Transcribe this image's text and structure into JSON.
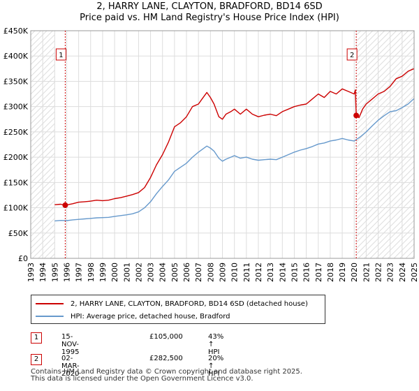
{
  "title_line1": "2, HARRY LANE, CLAYTON, BRADFORD, BD14 6SD",
  "title_line2": "Price paid vs. HM Land Registry's House Price Index (HPI)",
  "chart_data": {
    "type": "line",
    "title": "2, HARRY LANE, CLAYTON, BRADFORD, BD14 6SD — Price paid vs. HM Land Registry's House Price Index (HPI)",
    "xlim": [
      1993,
      2025
    ],
    "ylim": [
      0,
      450000
    ],
    "x_ticks": [
      1993,
      1994,
      1995,
      1996,
      1997,
      1998,
      1999,
      2000,
      2001,
      2002,
      2003,
      2004,
      2005,
      2006,
      2007,
      2008,
      2009,
      2010,
      2011,
      2012,
      2013,
      2014,
      2015,
      2016,
      2017,
      2018,
      2019,
      2020,
      2021,
      2022,
      2023,
      2024,
      2025
    ],
    "y_ticks": [
      0,
      50000,
      100000,
      150000,
      200000,
      250000,
      300000,
      350000,
      400000,
      450000
    ],
    "y_tick_labels": [
      "£0",
      "£50K",
      "£100K",
      "£150K",
      "£200K",
      "£250K",
      "£300K",
      "£350K",
      "£400K",
      "£450K"
    ],
    "grid": true,
    "hatched_ranges": [
      [
        1993,
        1995.0
      ],
      [
        2020.17,
        2025
      ]
    ],
    "series": [
      {
        "name": "2, HARRY LANE, CLAYTON, BRADFORD, BD14 6SD (detached house)",
        "color": "#cc0000",
        "x": [
          1995.0,
          1995.5,
          1995.88,
          1996.5,
          1997,
          1997.5,
          1998,
          1998.5,
          1999,
          1999.5,
          2000,
          2000.5,
          2001,
          2001.5,
          2002,
          2002.5,
          2003,
          2003.5,
          2004,
          2004.5,
          2005,
          2005.5,
          2006,
          2006.5,
          2007,
          2007.3,
          2007.7,
          2008,
          2008.3,
          2008.7,
          2009,
          2009.3,
          2009.7,
          2010,
          2010.5,
          2011,
          2011.5,
          2012,
          2012.5,
          2013,
          2013.5,
          2014,
          2014.5,
          2015,
          2015.5,
          2016,
          2016.5,
          2017,
          2017.5,
          2018,
          2018.5,
          2019,
          2019.5,
          2020.0,
          2020.1,
          2020.17,
          2020.4,
          2020.7,
          2021,
          2021.5,
          2022,
          2022.5,
          2023,
          2023.5,
          2024,
          2024.5,
          2025
        ],
        "values": [
          106000,
          107000,
          105000,
          108000,
          111000,
          112000,
          113000,
          115000,
          114000,
          115000,
          118000,
          120000,
          123000,
          126000,
          130000,
          140000,
          160000,
          185000,
          205000,
          230000,
          260000,
          268000,
          280000,
          300000,
          305000,
          315000,
          328000,
          318000,
          305000,
          280000,
          275000,
          285000,
          290000,
          295000,
          285000,
          295000,
          285000,
          280000,
          283000,
          285000,
          282000,
          290000,
          295000,
          300000,
          303000,
          305000,
          315000,
          325000,
          318000,
          330000,
          325000,
          335000,
          330000,
          325000,
          333000,
          282500,
          278000,
          295000,
          305000,
          315000,
          325000,
          330000,
          340000,
          355000,
          360000,
          370000,
          375000
        ]
      },
      {
        "name": "HPI: Average price, detached house, Bradford",
        "color": "#6699cc",
        "x": [
          1995.0,
          1995.5,
          1996,
          1996.5,
          1997,
          1997.5,
          1998,
          1998.5,
          1999,
          1999.5,
          2000,
          2000.5,
          2001,
          2001.5,
          2002,
          2002.5,
          2003,
          2003.5,
          2004,
          2004.5,
          2005,
          2005.5,
          2006,
          2006.5,
          2007,
          2007.3,
          2007.7,
          2008,
          2008.3,
          2008.7,
          2009,
          2009.3,
          2009.7,
          2010,
          2010.5,
          2011,
          2011.5,
          2012,
          2012.5,
          2013,
          2013.5,
          2014,
          2014.5,
          2015,
          2015.5,
          2016,
          2016.5,
          2017,
          2017.5,
          2018,
          2018.5,
          2019,
          2019.5,
          2020.0,
          2020.5,
          2021,
          2021.5,
          2022,
          2022.5,
          2023,
          2023.5,
          2024,
          2024.5,
          2025
        ],
        "values": [
          74000,
          75000,
          74500,
          76000,
          77000,
          78000,
          79000,
          80000,
          80500,
          81000,
          83000,
          84500,
          86000,
          88000,
          92000,
          100000,
          112000,
          128000,
          142000,
          155000,
          172000,
          180000,
          188000,
          200000,
          210000,
          215000,
          222000,
          218000,
          212000,
          198000,
          192000,
          196000,
          200000,
          203000,
          198000,
          200000,
          196000,
          194000,
          195000,
          196000,
          195000,
          200000,
          205000,
          210000,
          214000,
          217000,
          221000,
          226000,
          228000,
          232000,
          234000,
          237000,
          234000,
          232000,
          240000,
          250000,
          262000,
          273000,
          282000,
          290000,
          292000,
          298000,
          305000,
          316000
        ]
      }
    ],
    "annotations": [
      {
        "label": "1",
        "x": 1995.88,
        "y": 105000
      },
      {
        "label": "2",
        "x": 2020.17,
        "y": 282500
      }
    ]
  },
  "legend": {
    "property_label": "2, HARRY LANE, CLAYTON, BRADFORD, BD14 6SD (detached house)",
    "hpi_label": "HPI: Average price, detached house, Bradford"
  },
  "transactions": [
    {
      "num": "1",
      "date": "15-NOV-1995",
      "price": "£105,000",
      "hpi": "43% ↑ HPI"
    },
    {
      "num": "2",
      "date": "02-MAR-2020",
      "price": "£282,500",
      "hpi": "20% ↑ HPI"
    }
  ],
  "footer_line1": "Contains HM Land Registry data © Crown copyright and database right 2025.",
  "footer_line2": "This data is licensed under the Open Government Licence v3.0."
}
